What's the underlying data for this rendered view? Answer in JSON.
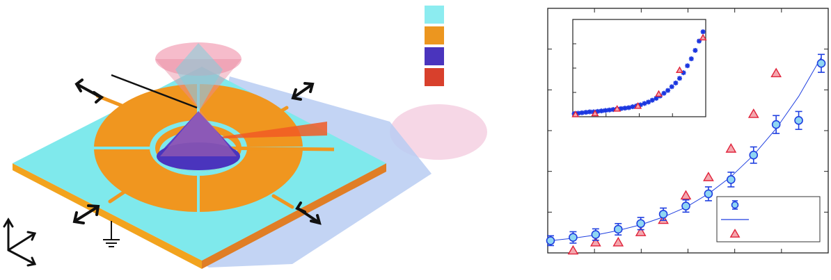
{
  "colors": {
    "substrate": "#7fe9ec",
    "substrate_side": "#f2a31e",
    "electrode": "#f0961f",
    "cone": "#5b3fc4",
    "laser": "#d9412f",
    "hourglass": "#e88aa0",
    "shadow": "#b9cdf2",
    "arrow": "#111111",
    "plot_blue": "#1f3fe0",
    "circle_fill": "#8fd6f2",
    "triangle_fill": "#f4a7ae",
    "triangle_stroke": "#e0223a",
    "inset_marker": "#1a36e0"
  },
  "swatches": [
    {
      "name": "swatch-cyan",
      "color": "#8cecf0"
    },
    {
      "name": "swatch-orange",
      "color": "#ec961f"
    },
    {
      "name": "swatch-purple",
      "color": "#4a34bd"
    },
    {
      "name": "swatch-red",
      "color": "#d8402c"
    }
  ],
  "chart_data": [
    {
      "type": "scatter",
      "title": "",
      "xlabel": "",
      "ylabel": "",
      "grid": false,
      "legend_placement": "bottom-right",
      "xlim": [
        0,
        12
      ],
      "ylim": [
        0,
        6
      ],
      "series": [
        {
          "marker": "circle-errorbar",
          "x": [
            0,
            1,
            2,
            3,
            4,
            5,
            6,
            7,
            8,
            9,
            10,
            11,
            12
          ],
          "y": [
            0.3,
            0.38,
            0.45,
            0.58,
            0.72,
            0.95,
            1.15,
            1.45,
            1.8,
            2.4,
            3.15,
            3.25,
            4.65
          ],
          "err": [
            0.12,
            0.14,
            0.14,
            0.14,
            0.15,
            0.15,
            0.15,
            0.17,
            0.18,
            0.2,
            0.22,
            0.22,
            0.22
          ]
        },
        {
          "marker": "line",
          "x": [
            0,
            1,
            2,
            3,
            4,
            5,
            6,
            7,
            8,
            9,
            10,
            11,
            12
          ],
          "y": [
            0.3,
            0.36,
            0.44,
            0.55,
            0.69,
            0.88,
            1.12,
            1.45,
            1.87,
            2.4,
            3.05,
            3.84,
            4.8
          ]
        },
        {
          "marker": "triangle",
          "x": [
            1,
            2,
            3,
            4,
            5,
            6,
            7,
            8,
            9,
            10
          ],
          "y": [
            0.05,
            0.25,
            0.25,
            0.5,
            0.8,
            1.4,
            1.85,
            2.55,
            3.4,
            4.4
          ]
        }
      ]
    },
    {
      "type": "scatter",
      "title": "",
      "xlabel": "",
      "ylabel": "",
      "grid": false,
      "xlim": [
        0,
        10
      ],
      "ylim": [
        0,
        2
      ],
      "series": [
        {
          "marker": "asterisk",
          "x": [
            0.0,
            0.3,
            0.6,
            0.9,
            1.2,
            1.5,
            1.8,
            2.1,
            2.4,
            2.7,
            3.0,
            3.3,
            3.6,
            3.9,
            4.2,
            4.5,
            4.8,
            5.1,
            5.4,
            5.7,
            6.0,
            6.3,
            6.6,
            6.9,
            7.2,
            7.5,
            7.8,
            8.1,
            8.4,
            8.7,
            9.0,
            9.3,
            9.6,
            9.9
          ],
          "y": [
            0.02,
            0.03,
            0.04,
            0.05,
            0.06,
            0.06,
            0.07,
            0.08,
            0.09,
            0.1,
            0.11,
            0.12,
            0.13,
            0.14,
            0.15,
            0.17,
            0.19,
            0.21,
            0.24,
            0.27,
            0.31,
            0.35,
            0.4,
            0.46,
            0.52,
            0.6,
            0.68,
            0.78,
            0.9,
            1.05,
            1.2,
            1.38,
            1.58,
            1.78
          ]
        },
        {
          "marker": "triangle",
          "x": [
            0.1,
            1.6,
            3.3,
            4.9,
            6.5,
            8.1,
            9.9
          ],
          "y": [
            0.0,
            0.02,
            0.12,
            0.18,
            0.44,
            0.95,
            1.65
          ]
        }
      ]
    }
  ]
}
